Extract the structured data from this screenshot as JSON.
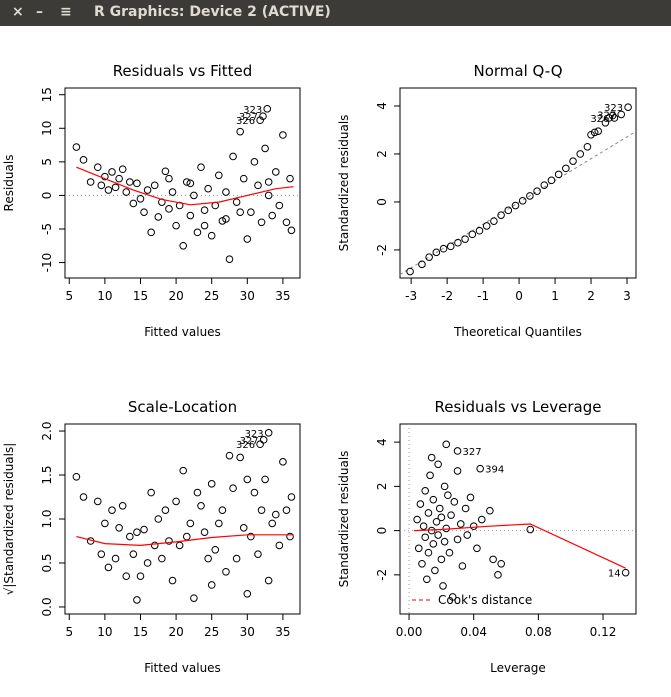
{
  "window": {
    "title": "R Graphics: Device 2 (ACTIVE)"
  },
  "chart_data": [
    {
      "type": "scatter",
      "title": "Residuals vs Fitted",
      "x_label": "Fitted values",
      "y_label": "Residuals",
      "xlim": [
        4.4,
        37.4
      ],
      "ylim": [
        -12.3,
        16
      ],
      "xticks": [
        5,
        10,
        15,
        20,
        25,
        30,
        35
      ],
      "yticks": [
        -10,
        -5,
        0,
        5,
        10,
        15
      ],
      "hline": 0,
      "x": [
        6,
        7,
        8,
        9,
        9.5,
        10,
        10.5,
        11,
        11.5,
        12,
        12.5,
        13,
        13.5,
        14,
        14.5,
        15,
        15.5,
        16,
        16.5,
        17,
        17.5,
        18,
        18.5,
        19,
        19.5,
        20,
        20.5,
        21,
        21.5,
        22,
        22.5,
        23,
        23.5,
        24,
        24.5,
        25,
        25.5,
        26,
        26.5,
        27,
        27.5,
        28,
        28.5,
        29,
        29.5,
        30,
        30.5,
        31,
        31.5,
        32,
        32.5,
        33,
        33.5,
        34,
        34.5,
        35,
        35.5,
        36,
        36.2,
        27,
        22,
        19,
        24,
        29,
        33
      ],
      "y": [
        7.2,
        5.3,
        2,
        4.2,
        1.5,
        2.8,
        0.8,
        3.5,
        1.2,
        2.5,
        3.9,
        0.5,
        2,
        -1.2,
        1.8,
        -0.5,
        -2.5,
        0.8,
        -5.5,
        1.5,
        -3.2,
        -1,
        3.6,
        -2,
        0.5,
        -4.5,
        -1.5,
        -7.5,
        2,
        -3,
        0,
        -5.5,
        4.2,
        -2.2,
        1,
        -6,
        -1.5,
        3,
        -3.8,
        0.5,
        -9.5,
        5.8,
        -1,
        9.5,
        2.5,
        -6.5,
        -2.5,
        5,
        1.5,
        -4,
        7,
        0,
        -3,
        3.5,
        -1.5,
        9,
        -4,
        2.5,
        -5.2,
        -3.5,
        1.8,
        2.5,
        -4.5,
        -2.5,
        2
      ],
      "labeled_points": [
        {
          "label": "323",
          "x": 32.8,
          "y": 12.9
        },
        {
          "label": "327",
          "x": 32.2,
          "y": 11.8
        },
        {
          "label": "326",
          "x": 31.8,
          "y": 11.2
        }
      ],
      "smooth": {
        "color": "#ff0000",
        "x": [
          6,
          10,
          14,
          18,
          22,
          26,
          30,
          34,
          36.5
        ],
        "y": [
          4.2,
          2.5,
          0.8,
          -0.6,
          -1.4,
          -1,
          0,
          1,
          1.3
        ]
      }
    },
    {
      "type": "scatter",
      "title": "Normal Q-Q",
      "x_label": "Theoretical Quantiles",
      "y_label": "Standardized residuals",
      "xlim": [
        -3.31,
        3.25
      ],
      "ylim": [
        -3.17,
        4.75
      ],
      "xticks": [
        -3,
        -2,
        -1,
        0,
        1,
        2,
        3
      ],
      "yticks": [
        -2,
        0,
        2,
        4
      ],
      "x": [
        -3.03,
        -2.7,
        -2.5,
        -2.3,
        -2.1,
        -1.9,
        -1.7,
        -1.5,
        -1.3,
        -1.1,
        -0.9,
        -0.7,
        -0.5,
        -0.3,
        -0.1,
        0.1,
        0.3,
        0.5,
        0.7,
        0.9,
        1.1,
        1.3,
        1.5,
        1.7,
        1.9,
        2,
        2.1,
        2.2,
        2.4,
        2.5,
        2.6
      ],
      "y": [
        -2.9,
        -2.6,
        -2.3,
        -2.1,
        -1.95,
        -1.85,
        -1.7,
        -1.55,
        -1.35,
        -1.2,
        -1,
        -0.8,
        -0.55,
        -0.35,
        -0.15,
        0.05,
        0.25,
        0.45,
        0.7,
        0.9,
        1.15,
        1.4,
        1.7,
        2,
        2.3,
        2.8,
        2.9,
        2.95,
        3.3,
        3.5,
        3.6
      ],
      "labeled_points": [
        {
          "label": "323",
          "x": 3.03,
          "y": 3.95
        },
        {
          "label": "327",
          "x": 2.84,
          "y": 3.65
        },
        {
          "label": "326",
          "x": 2.65,
          "y": 3.5
        }
      ],
      "reference_line": {
        "x": [
          -3.31,
          3.25
        ],
        "y": [
          -3.03,
          2.94
        ]
      }
    },
    {
      "type": "scatter",
      "title": "Scale-Location",
      "x_label": "Fitted values",
      "y_label": "√|Standardized residuals|",
      "xlim": [
        4.4,
        37.4
      ],
      "ylim": [
        -0.08,
        2.08
      ],
      "xticks": [
        5,
        10,
        15,
        20,
        25,
        30,
        35
      ],
      "yticks": [
        {
          "value": 0,
          "label": "0.0"
        },
        0.5,
        {
          "value": 1,
          "label": "1.0"
        },
        1.5,
        {
          "value": 2,
          "label": "2.0"
        }
      ],
      "x": [
        6,
        7,
        8,
        9,
        9.5,
        10,
        10.5,
        11,
        11.5,
        12,
        12.5,
        13,
        13.5,
        14,
        14.5,
        15,
        15.5,
        16,
        16.5,
        17,
        17.5,
        18,
        18.5,
        19,
        19.5,
        20,
        20.5,
        21,
        21.5,
        22,
        22.5,
        23,
        23.5,
        24,
        24.5,
        25,
        25.5,
        26,
        26.5,
        27,
        27.5,
        28,
        28.5,
        29,
        29.5,
        30,
        30.5,
        31,
        31.5,
        32,
        32.5,
        33,
        33.5,
        34,
        34.5,
        35,
        35.5,
        36,
        36.2,
        14.5,
        25,
        30
      ],
      "y": [
        1.48,
        1.25,
        0.75,
        1.2,
        0.6,
        0.95,
        0.45,
        1.1,
        0.55,
        0.9,
        1.15,
        0.35,
        0.8,
        0.6,
        0.85,
        0.35,
        0.88,
        0.5,
        1.3,
        0.7,
        1,
        0.55,
        1.1,
        0.75,
        0.3,
        1.2,
        0.7,
        1.55,
        0.8,
        0.95,
        0.1,
        1.3,
        1.15,
        0.85,
        0.55,
        1.4,
        0.65,
        0.95,
        1.1,
        0.4,
        1.72,
        1.35,
        0.55,
        1.7,
        0.9,
        1.45,
        0.8,
        1.3,
        0.6,
        1.1,
        1.45,
        0.3,
        0.95,
        1.05,
        0.7,
        1.65,
        1.1,
        0.8,
        1.25,
        0.08,
        0.25,
        0.15
      ],
      "labeled_points": [
        {
          "label": "323",
          "x": 33,
          "y": 1.98
        },
        {
          "label": "327",
          "x": 32.3,
          "y": 1.9
        },
        {
          "label": "326",
          "x": 31.8,
          "y": 1.85
        }
      ],
      "smooth": {
        "color": "#ff0000",
        "x": [
          6,
          10,
          15,
          20,
          25,
          30,
          36.5
        ],
        "y": [
          0.8,
          0.72,
          0.7,
          0.74,
          0.79,
          0.82,
          0.82
        ]
      }
    },
    {
      "type": "scatter",
      "title": "Residuals vs Leverage",
      "x_label": "Leverage",
      "y_label": "Standardized residuals",
      "xlim": [
        -0.0056,
        0.1404
      ],
      "ylim": [
        -3.77,
        4.82
      ],
      "xticks": [
        {
          "value": 0,
          "label": "0.00"
        },
        {
          "value": 0.04,
          "label": "0.04"
        },
        {
          "value": 0.08,
          "label": "0.08"
        },
        {
          "value": 0.12,
          "label": "0.12"
        }
      ],
      "yticks": [
        -2,
        0,
        2,
        4
      ],
      "hline": 0,
      "vline": 0,
      "x": [
        0.005,
        0.006,
        0.007,
        0.008,
        0.009,
        0.01,
        0.01,
        0.011,
        0.012,
        0.012,
        0.013,
        0.014,
        0.015,
        0.015,
        0.016,
        0.017,
        0.018,
        0.018,
        0.019,
        0.02,
        0.02,
        0.021,
        0.022,
        0.022,
        0.023,
        0.024,
        0.025,
        0.026,
        0.027,
        0.028,
        0.03,
        0.03,
        0.032,
        0.033,
        0.035,
        0.036,
        0.038,
        0.04,
        0.042,
        0.045,
        0.05,
        0.052,
        0.055,
        0.057,
        0.075,
        0.023,
        0.014
      ],
      "y": [
        0.5,
        -0.8,
        1.2,
        -1.5,
        0.2,
        -0.3,
        1.8,
        -2.2,
        0.8,
        -1,
        2.5,
        0,
        -0.6,
        1.4,
        -1.8,
        0.4,
        3,
        -0.2,
        1,
        -1.3,
        0.6,
        -2.5,
        2,
        -0.5,
        0.1,
        1.6,
        -1,
        0.7,
        -3,
        1.3,
        -0.4,
        2.7,
        0.3,
        -1.6,
        1,
        -0.2,
        1.5,
        0.2,
        -0.8,
        0.5,
        0.9,
        -1.3,
        -2,
        -1.5,
        0.05,
        3.9,
        3.3
      ],
      "labeled_points": [
        {
          "label": "327",
          "x": 0.03,
          "y": 3.6
        },
        {
          "label": "394",
          "x": 0.044,
          "y": 2.8
        },
        {
          "label": "14",
          "x": 0.134,
          "y": -1.9
        }
      ],
      "smooth": {
        "color": "#ff0000",
        "x": [
          0.003,
          0.02,
          0.05,
          0.075,
          0.134
        ],
        "y": [
          0,
          0.05,
          0.2,
          0.3,
          -1.7
        ]
      },
      "legend": {
        "label": "Cook's distance",
        "color": "#ff0000",
        "position": "bottom-left"
      }
    }
  ]
}
